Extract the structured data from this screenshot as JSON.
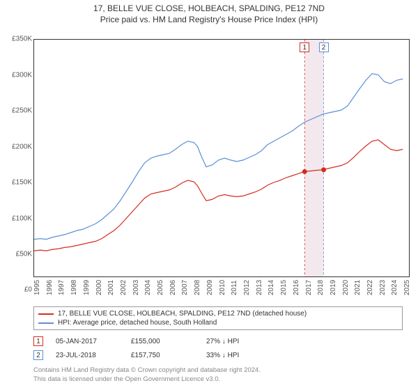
{
  "title_line1": "17, BELLE VUE CLOSE, HOLBEACH, SPALDING, PE12 7ND",
  "title_line2": "Price paid vs. HM Land Registry's House Price Index (HPI)",
  "chart": {
    "type": "line",
    "background_color": "#ffffff",
    "axis_color": "#333333",
    "x_years": [
      1995,
      1996,
      1997,
      1998,
      1999,
      2000,
      2001,
      2002,
      2003,
      2004,
      2005,
      2006,
      2007,
      2008,
      2009,
      2010,
      2011,
      2012,
      2013,
      2014,
      2015,
      2016,
      2017,
      2018,
      2019,
      2020,
      2021,
      2022,
      2023,
      2024,
      2025
    ],
    "xlim": [
      1995,
      2025.5
    ],
    "ylim": [
      0,
      350000
    ],
    "y_ticks": [
      0,
      50000,
      100000,
      150000,
      200000,
      250000,
      300000,
      350000
    ],
    "y_tick_labels": [
      "£0",
      "£50K",
      "£100K",
      "£150K",
      "£200K",
      "£250K",
      "£300K",
      "£350K"
    ],
    "tick_fontsize": 10,
    "hpi": {
      "color": "#5b8fd6",
      "width": 1.2,
      "points": [
        [
          1995.0,
          55000
        ],
        [
          1995.5,
          56000
        ],
        [
          1996.0,
          55000
        ],
        [
          1996.5,
          58000
        ],
        [
          1997.0,
          60000
        ],
        [
          1997.5,
          62000
        ],
        [
          1998.0,
          65000
        ],
        [
          1998.5,
          68000
        ],
        [
          1999.0,
          70000
        ],
        [
          1999.5,
          74000
        ],
        [
          2000.0,
          78000
        ],
        [
          2000.5,
          84000
        ],
        [
          2001.0,
          92000
        ],
        [
          2001.5,
          100000
        ],
        [
          2002.0,
          112000
        ],
        [
          2002.5,
          126000
        ],
        [
          2003.0,
          140000
        ],
        [
          2003.5,
          155000
        ],
        [
          2004.0,
          168000
        ],
        [
          2004.5,
          175000
        ],
        [
          2005.0,
          178000
        ],
        [
          2005.5,
          180000
        ],
        [
          2006.0,
          182000
        ],
        [
          2006.5,
          188000
        ],
        [
          2007.0,
          195000
        ],
        [
          2007.5,
          200000
        ],
        [
          2008.0,
          198000
        ],
        [
          2008.3,
          192000
        ],
        [
          2008.6,
          178000
        ],
        [
          2009.0,
          162000
        ],
        [
          2009.5,
          165000
        ],
        [
          2010.0,
          172000
        ],
        [
          2010.5,
          175000
        ],
        [
          2011.0,
          172000
        ],
        [
          2011.5,
          170000
        ],
        [
          2012.0,
          172000
        ],
        [
          2012.5,
          176000
        ],
        [
          2013.0,
          180000
        ],
        [
          2013.5,
          186000
        ],
        [
          2014.0,
          195000
        ],
        [
          2014.5,
          200000
        ],
        [
          2015.0,
          205000
        ],
        [
          2015.5,
          210000
        ],
        [
          2016.0,
          215000
        ],
        [
          2016.5,
          222000
        ],
        [
          2017.0,
          228000
        ],
        [
          2017.5,
          232000
        ],
        [
          2018.0,
          236000
        ],
        [
          2018.5,
          240000
        ],
        [
          2019.0,
          242000
        ],
        [
          2019.5,
          244000
        ],
        [
          2020.0,
          246000
        ],
        [
          2020.5,
          252000
        ],
        [
          2021.0,
          265000
        ],
        [
          2021.5,
          278000
        ],
        [
          2022.0,
          290000
        ],
        [
          2022.5,
          300000
        ],
        [
          2023.0,
          298000
        ],
        [
          2023.5,
          288000
        ],
        [
          2024.0,
          285000
        ],
        [
          2024.5,
          290000
        ],
        [
          2025.0,
          292000
        ]
      ]
    },
    "property": {
      "color": "#d52b1e",
      "width": 1.2,
      "points": [
        [
          1995.0,
          38000
        ],
        [
          1995.5,
          39000
        ],
        [
          1996.0,
          38000
        ],
        [
          1996.5,
          40000
        ],
        [
          1997.0,
          41000
        ],
        [
          1997.5,
          43000
        ],
        [
          1998.0,
          44000
        ],
        [
          1998.5,
          46000
        ],
        [
          1999.0,
          48000
        ],
        [
          1999.5,
          50000
        ],
        [
          2000.0,
          52000
        ],
        [
          2000.5,
          56000
        ],
        [
          2001.0,
          62000
        ],
        [
          2001.5,
          68000
        ],
        [
          2002.0,
          76000
        ],
        [
          2002.5,
          86000
        ],
        [
          2003.0,
          96000
        ],
        [
          2003.5,
          106000
        ],
        [
          2004.0,
          116000
        ],
        [
          2004.5,
          122000
        ],
        [
          2005.0,
          124000
        ],
        [
          2005.5,
          126000
        ],
        [
          2006.0,
          128000
        ],
        [
          2006.5,
          132000
        ],
        [
          2007.0,
          138000
        ],
        [
          2007.5,
          142000
        ],
        [
          2008.0,
          140000
        ],
        [
          2008.3,
          134000
        ],
        [
          2008.6,
          124000
        ],
        [
          2009.0,
          112000
        ],
        [
          2009.5,
          114000
        ],
        [
          2010.0,
          119000
        ],
        [
          2010.5,
          121000
        ],
        [
          2011.0,
          119000
        ],
        [
          2011.5,
          118000
        ],
        [
          2012.0,
          119000
        ],
        [
          2012.5,
          122000
        ],
        [
          2013.0,
          125000
        ],
        [
          2013.5,
          129000
        ],
        [
          2014.0,
          135000
        ],
        [
          2014.5,
          139000
        ],
        [
          2015.0,
          142000
        ],
        [
          2015.5,
          146000
        ],
        [
          2016.0,
          149000
        ],
        [
          2016.5,
          152000
        ],
        [
          2017.0,
          155000
        ],
        [
          2017.5,
          156000
        ],
        [
          2018.0,
          157000
        ],
        [
          2018.5,
          157750
        ],
        [
          2019.0,
          160000
        ],
        [
          2019.5,
          162000
        ],
        [
          2020.0,
          164000
        ],
        [
          2020.5,
          168000
        ],
        [
          2021.0,
          176000
        ],
        [
          2021.5,
          185000
        ],
        [
          2022.0,
          193000
        ],
        [
          2022.5,
          200000
        ],
        [
          2023.0,
          202000
        ],
        [
          2023.5,
          195000
        ],
        [
          2024.0,
          188000
        ],
        [
          2024.5,
          186000
        ],
        [
          2025.0,
          188000
        ]
      ]
    },
    "sale_markers": {
      "color": "#d52b1e",
      "radius": 3.5,
      "points": [
        {
          "x": 2017.01,
          "y": 155000
        },
        {
          "x": 2018.56,
          "y": 157750
        }
      ]
    },
    "marker_badges": [
      {
        "n": "1",
        "x": 2017.01,
        "color": "#d52b1e"
      },
      {
        "n": "2",
        "x": 2018.56,
        "color": "#5b8fd6"
      }
    ],
    "marker_band_color": "#f3e8ee",
    "marker_line_dash": "3,3"
  },
  "legend": {
    "items": [
      {
        "color": "#d52b1e",
        "label": "17, BELLE VUE CLOSE, HOLBEACH, SPALDING, PE12 7ND (detached house)"
      },
      {
        "color": "#5b8fd6",
        "label": "HPI: Average price, detached house, South Holland"
      }
    ]
  },
  "events": [
    {
      "n": "1",
      "color": "#d52b1e",
      "date": "05-JAN-2017",
      "price": "£155,000",
      "delta": "27% ↓ HPI"
    },
    {
      "n": "2",
      "color": "#5b8fd6",
      "date": "23-JUL-2018",
      "price": "£157,750",
      "delta": "33% ↓ HPI"
    }
  ],
  "footnote_line1": "Contains HM Land Registry data © Crown copyright and database right 2024.",
  "footnote_line2": "This data is licensed under the Open Government Licence v3.0."
}
